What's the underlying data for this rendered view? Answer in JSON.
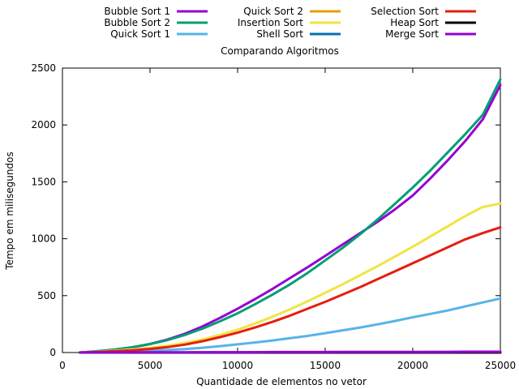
{
  "chart_data": {
    "type": "line",
    "title": "Comparando Algoritmos",
    "xlabel": "Quantidade de elementos no vetor",
    "ylabel": "Tempo em milisegundos",
    "xlim": [
      0,
      25000
    ],
    "ylim": [
      0,
      2500
    ],
    "xticks": [
      0,
      5000,
      10000,
      15000,
      20000,
      25000
    ],
    "yticks": [
      0,
      500,
      1000,
      1500,
      2000,
      2500
    ],
    "grid": false,
    "legend_position": "top",
    "x": [
      1000,
      2000,
      3000,
      4000,
      5000,
      6000,
      7000,
      8000,
      9000,
      10000,
      11000,
      12000,
      13000,
      14000,
      15000,
      16000,
      17000,
      18000,
      19000,
      20000,
      21000,
      22000,
      23000,
      24000,
      25000
    ],
    "series": [
      {
        "name": "Bubble Sort 1",
        "color": "#9400d3",
        "values": [
          0,
          10,
          25,
          45,
          75,
          115,
          165,
          230,
          305,
          385,
          470,
          560,
          655,
          750,
          850,
          950,
          1050,
          1150,
          1260,
          1380,
          1530,
          1690,
          1860,
          2050,
          2350
        ]
      },
      {
        "name": "Bubble Sort 2",
        "color": "#009e73",
        "values": [
          0,
          12,
          27,
          47,
          75,
          110,
          155,
          210,
          275,
          345,
          425,
          510,
          600,
          700,
          810,
          920,
          1040,
          1170,
          1310,
          1450,
          1600,
          1760,
          1920,
          2090,
          2400
        ]
      },
      {
        "name": "Quick Sort 1",
        "color": "#56b4e9",
        "values": [
          0,
          3,
          7,
          11,
          16,
          22,
          30,
          42,
          56,
          72,
          88,
          106,
          126,
          146,
          170,
          195,
          220,
          248,
          278,
          310,
          340,
          370,
          405,
          440,
          475
        ]
      },
      {
        "name": "Quick Sort 2",
        "color": "#e69f00",
        "values": [
          0,
          0,
          0,
          0,
          0,
          0,
          0,
          0,
          0,
          0,
          0,
          0,
          0,
          0,
          0,
          0,
          0,
          0,
          0,
          0,
          0,
          0,
          0,
          0,
          0
        ]
      },
      {
        "name": "Insertion Sort",
        "color": "#f0e442",
        "values": [
          0,
          7,
          17,
          28,
          42,
          60,
          85,
          115,
          155,
          200,
          255,
          315,
          380,
          450,
          525,
          600,
          680,
          760,
          845,
          930,
          1020,
          1110,
          1200,
          1280,
          1310
        ]
      },
      {
        "name": "Shell Sort",
        "color": "#0072b2",
        "values": [
          0,
          0,
          0,
          0,
          1,
          1,
          1,
          1,
          1,
          1,
          2,
          2,
          2,
          2,
          2,
          3,
          3,
          3,
          3,
          3,
          4,
          4,
          4,
          4,
          5
        ]
      },
      {
        "name": "Selection Sort",
        "color": "#e51e10",
        "values": [
          0,
          5,
          12,
          20,
          32,
          48,
          70,
          100,
          135,
          175,
          220,
          270,
          325,
          385,
          445,
          510,
          575,
          645,
          715,
          785,
          855,
          925,
          995,
          1050,
          1100
        ]
      },
      {
        "name": "Heap Sort",
        "color": "#000000",
        "values": [
          0,
          0,
          0,
          0,
          0,
          0,
          0,
          0,
          0,
          0,
          0,
          0,
          0,
          0,
          0,
          0,
          0,
          0,
          0,
          0,
          0,
          0,
          0,
          0,
          0
        ]
      },
      {
        "name": "Merge Sort",
        "color": "#9400d3",
        "values": [
          1,
          1,
          1,
          2,
          2,
          2,
          2,
          3,
          3,
          3,
          3,
          4,
          4,
          4,
          4,
          5,
          5,
          5,
          5,
          6,
          6,
          6,
          7,
          7,
          7
        ]
      }
    ]
  }
}
